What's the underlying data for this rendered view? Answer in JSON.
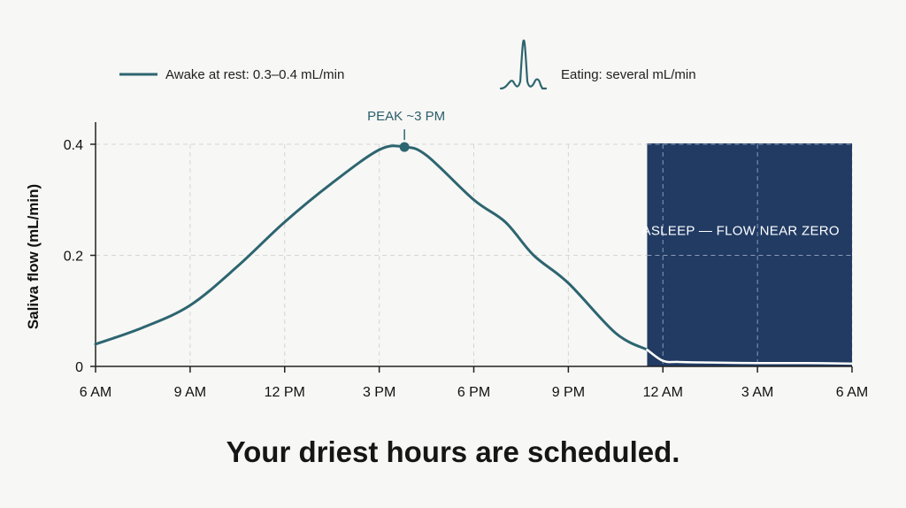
{
  "legend": {
    "awake_label": "Awake at rest: 0.3–0.4 mL/min",
    "eating_label": "Eating: several mL/min"
  },
  "headline": "Your driest hours are scheduled.",
  "chart_data": {
    "type": "line",
    "ylabel": "Saliva flow (mL/min)",
    "xlabel": "",
    "x_ticks": [
      "6 AM",
      "9 AM",
      "12 PM",
      "3 PM",
      "6 PM",
      "9 PM",
      "12 AM",
      "3 AM",
      "6 AM"
    ],
    "y_ticks": [
      {
        "value": 0,
        "label": "0"
      },
      {
        "value": 0.2,
        "label": "0.2"
      },
      {
        "value": 0.4,
        "label": "0.4"
      }
    ],
    "ylim": [
      0,
      0.4
    ],
    "x_unit": "hours since 6 AM",
    "xlim": [
      0,
      24
    ],
    "grid": true,
    "legend_position": "top",
    "series": [
      {
        "name": "Awake at rest: 0.3–0.4 mL/min",
        "x": [
          0,
          1.5,
          3,
          4.5,
          6,
          7.5,
          9,
          9.8,
          10.5,
          12,
          13,
          13.9,
          15,
          16.5,
          17.5,
          18,
          18.5,
          19.5,
          21,
          22.5,
          24
        ],
        "values": [
          0.04,
          0.07,
          0.11,
          0.18,
          0.26,
          0.33,
          0.39,
          0.395,
          0.38,
          0.3,
          0.26,
          0.2,
          0.15,
          0.06,
          0.03,
          0.01,
          0.008,
          0.007,
          0.006,
          0.006,
          0.005
        ]
      }
    ],
    "peak_annotation": {
      "label": "PEAK ~3 PM",
      "x": 9.8,
      "y": 0.395
    },
    "sleep_band": {
      "x_start": 17.5,
      "x_end": 24,
      "label": "ASLEEP — FLOW NEAR ZERO"
    },
    "colors": {
      "awake_line": "#2d6570",
      "sleep_band": "#213b63",
      "sleep_line": "#ffffff",
      "grid": "#d6d6d6",
      "axis": "#222222"
    }
  }
}
